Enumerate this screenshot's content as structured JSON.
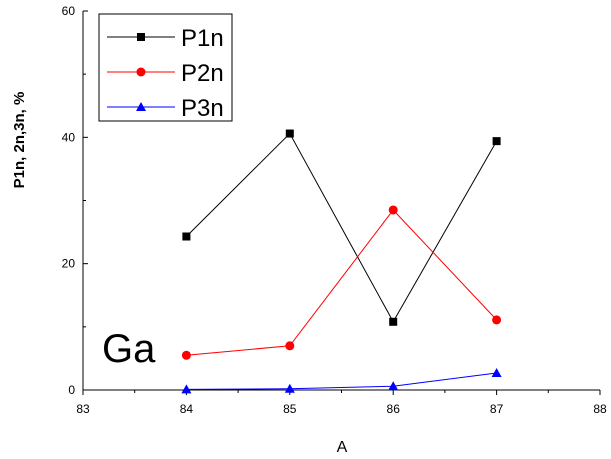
{
  "chart_data": {
    "type": "line",
    "x": [
      84,
      85,
      86,
      87
    ],
    "series": [
      {
        "name": "P1n",
        "values": [
          24.3,
          40.6,
          10.8,
          39.4
        ],
        "color": "#000000",
        "marker": "square"
      },
      {
        "name": "P2n",
        "values": [
          5.5,
          7.0,
          28.5,
          11.1
        ],
        "color": "#ff0000",
        "marker": "circle"
      },
      {
        "name": "P3n",
        "values": [
          0.1,
          0.2,
          0.6,
          2.7
        ],
        "color": "#0000ff",
        "marker": "triangle"
      }
    ],
    "title": "",
    "xlabel": "A",
    "ylabel": "P1n, 2n,3n,  %",
    "xlim": [
      83,
      88
    ],
    "ylim": [
      0,
      60
    ],
    "xticks": [
      "83",
      "84",
      "85",
      "86",
      "87",
      "88"
    ],
    "yticks": [
      "0",
      "20",
      "40",
      "60"
    ],
    "annotation": "Ga",
    "legend_position": "top-left",
    "grid": false
  }
}
